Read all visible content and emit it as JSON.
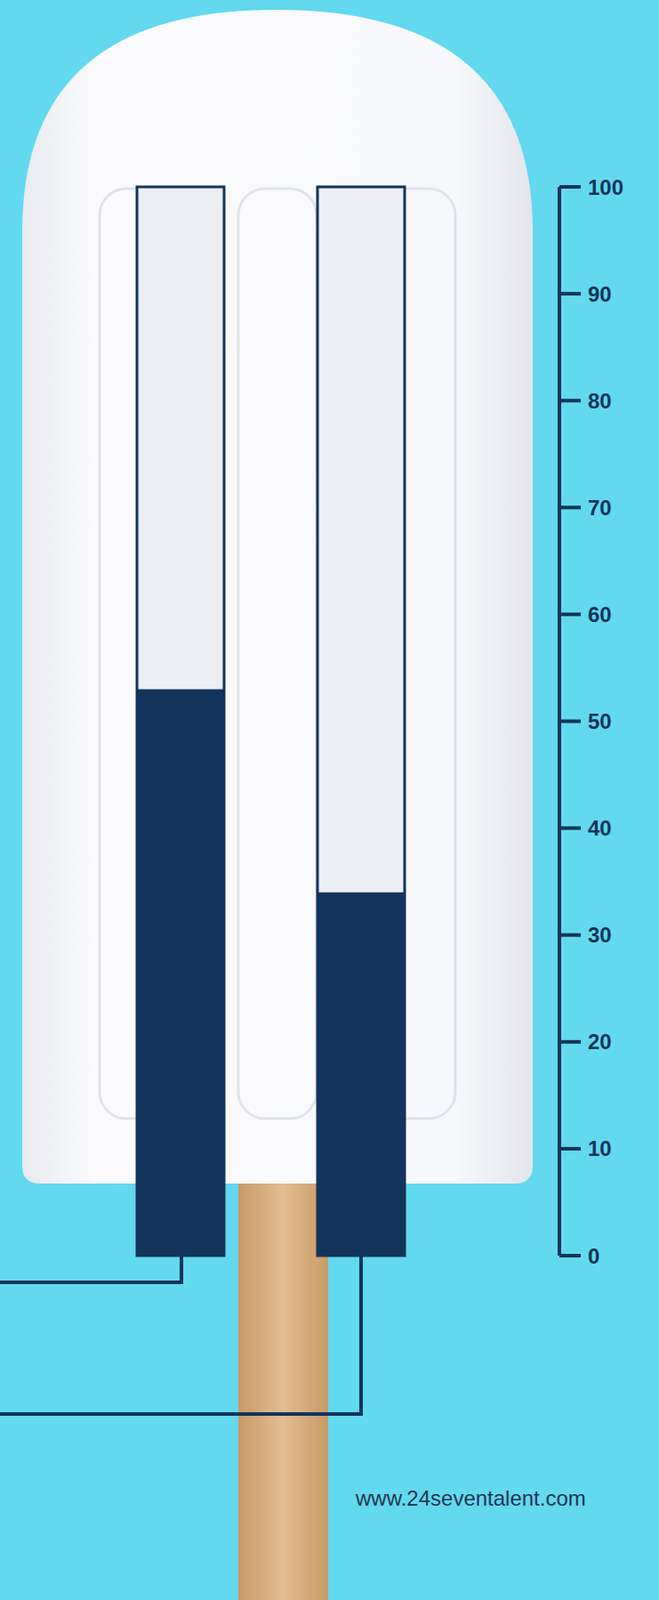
{
  "chart_data": {
    "type": "bar",
    "categories": [
      null,
      null
    ],
    "values": [
      53,
      34
    ],
    "color": "#12345a",
    "ylim": [
      0,
      100
    ],
    "yticks": [
      0,
      10,
      20,
      30,
      40,
      50,
      60,
      70,
      80,
      90,
      100
    ],
    "tick_labels": "y",
    "annotation": "www.24seventalent.com"
  }
}
